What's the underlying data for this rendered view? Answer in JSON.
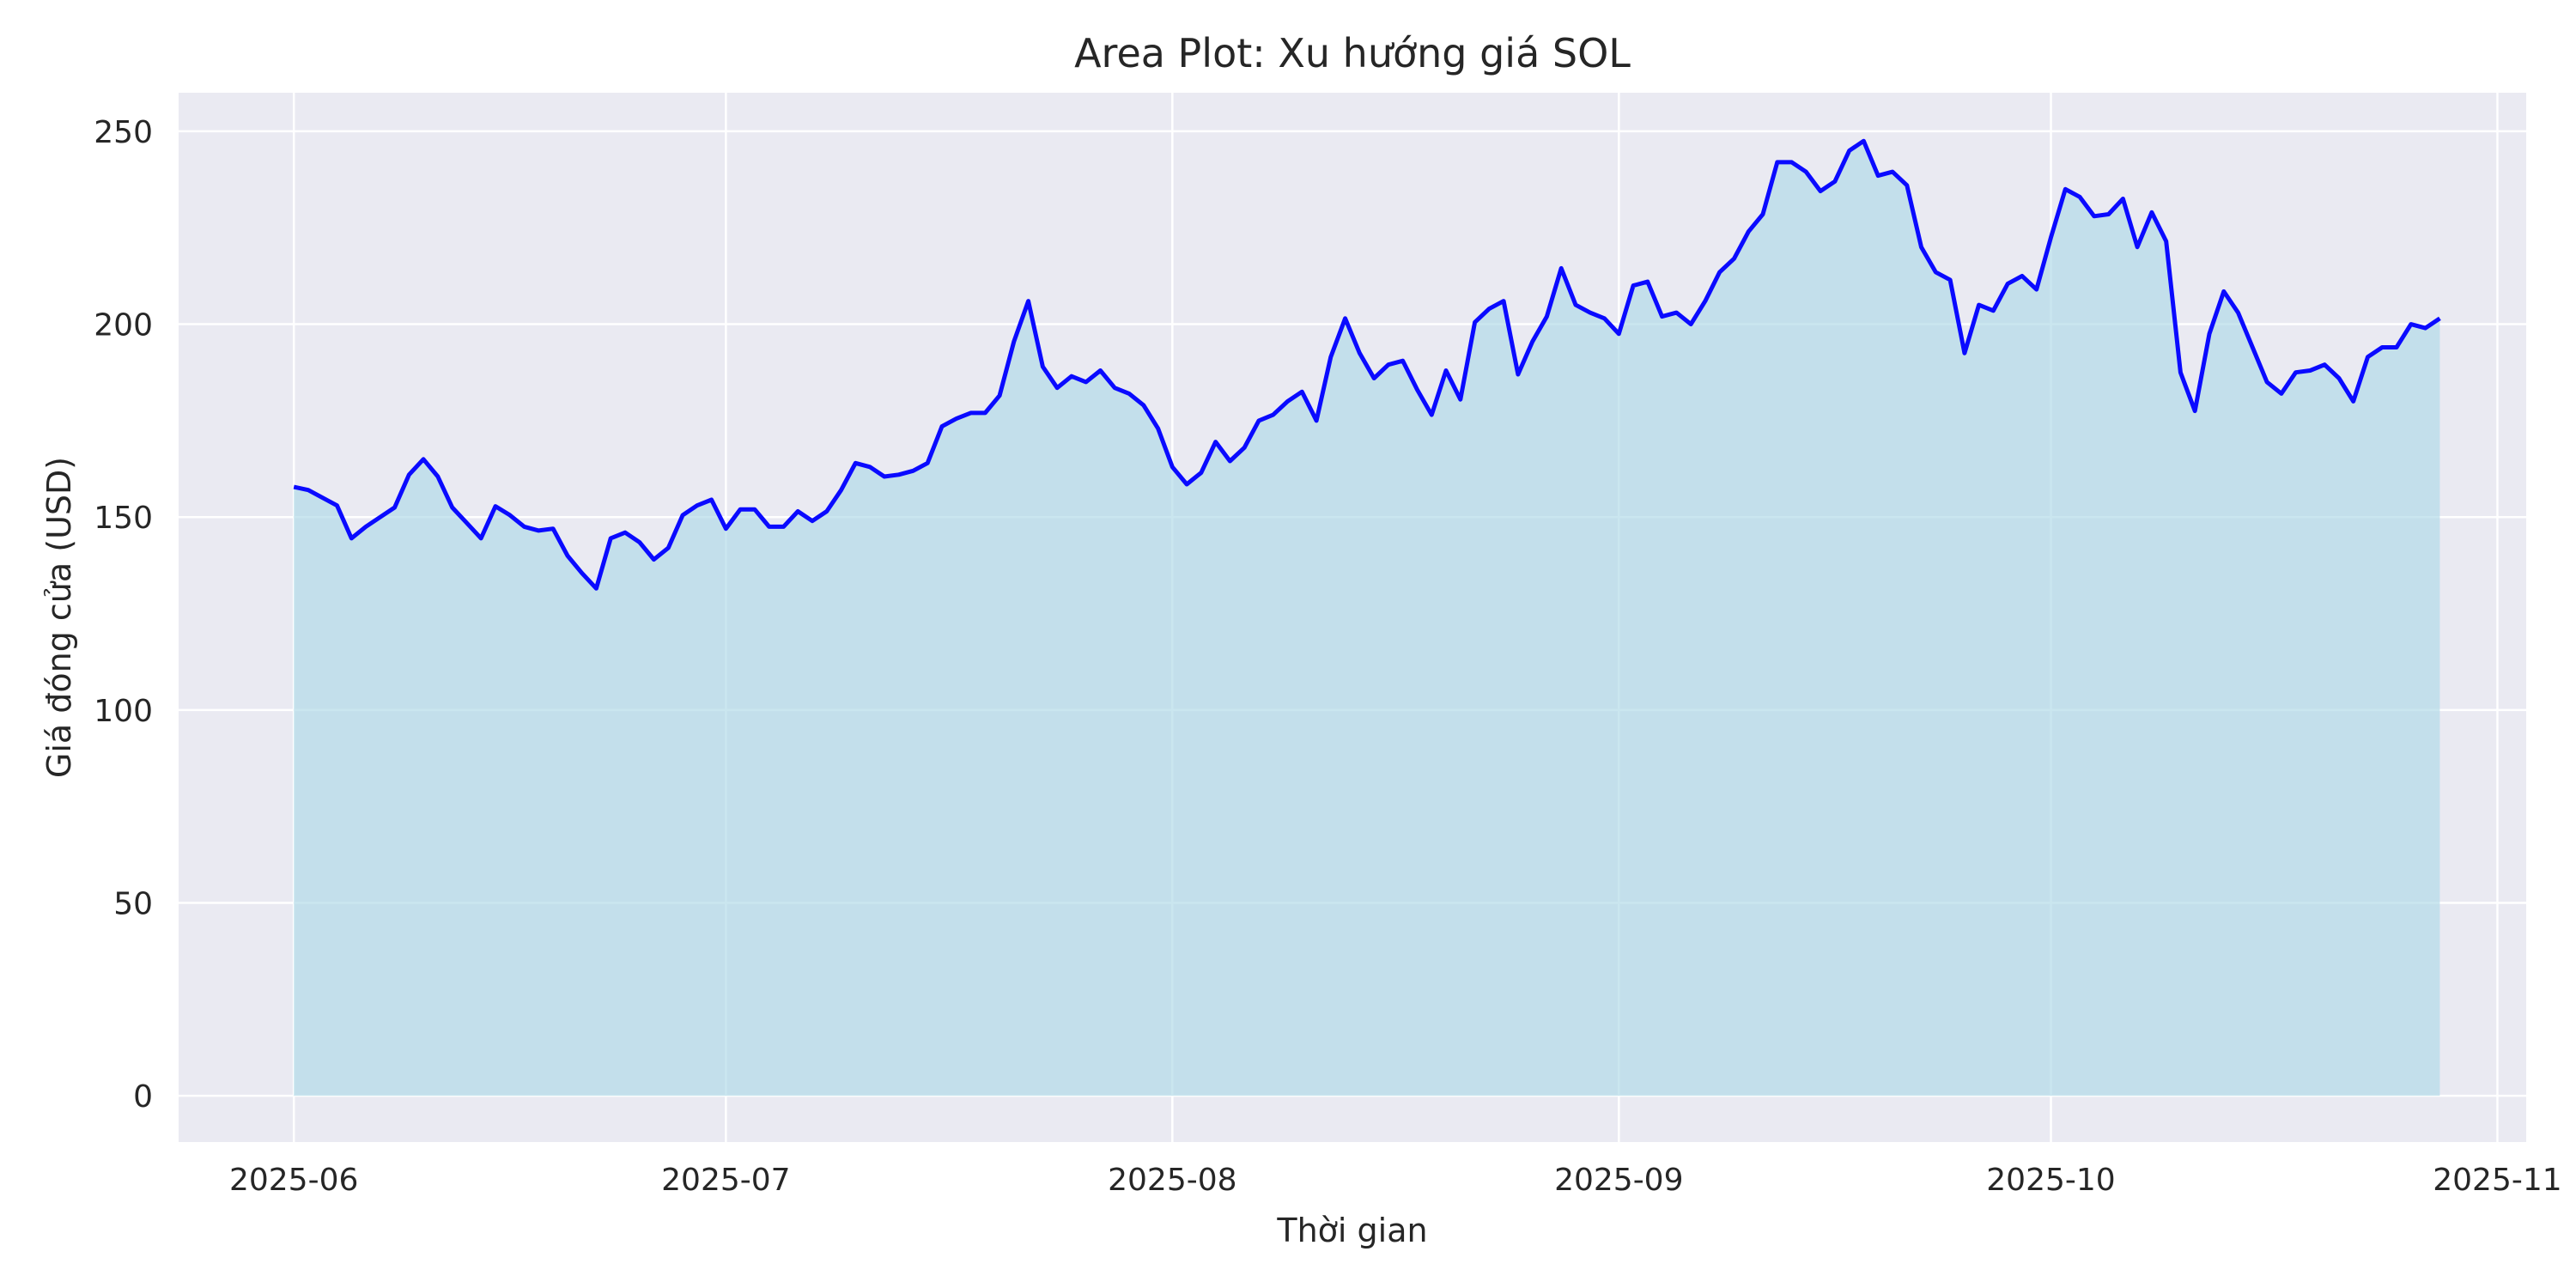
{
  "chart_data": {
    "type": "area",
    "title": "Area Plot: Xu hướng giá SOL",
    "xlabel": "Thời gian",
    "ylabel": "Giá đóng cửa (USD)",
    "x_start": "2025-06-01",
    "x_end": "2025-10-28",
    "xlim": [
      "2025-05-24",
      "2025-11-03"
    ],
    "ylim": [
      -12,
      260
    ],
    "x_ticks": [
      {
        "date": "2025-06-01",
        "label": "2025-06"
      },
      {
        "date": "2025-07-01",
        "label": "2025-07"
      },
      {
        "date": "2025-08-01",
        "label": "2025-08"
      },
      {
        "date": "2025-09-01",
        "label": "2025-09"
      },
      {
        "date": "2025-10-01",
        "label": "2025-10"
      },
      {
        "date": "2025-11-01",
        "label": "2025-11"
      }
    ],
    "y_ticks": [
      0,
      50,
      100,
      150,
      200,
      250
    ],
    "grid": true,
    "colors": {
      "line": "#0a0aff",
      "fill": "#add8e6",
      "background": "#eaeaf2",
      "grid": "#ffffff"
    },
    "series": [
      {
        "values": [
          157.8,
          157,
          155,
          153,
          144.5,
          147.5,
          150,
          152.5,
          161,
          165,
          160.5,
          152.5,
          148.5,
          144.5,
          152.8,
          150.5,
          147.5,
          146.5,
          147,
          140,
          135.5,
          131.5,
          144.5,
          146,
          143.5,
          139,
          142,
          150.5,
          153,
          154.5,
          147,
          152,
          152,
          147.5,
          147.5,
          151.5,
          149,
          151.5,
          157,
          164,
          163,
          160.5,
          161,
          162,
          164,
          173.5,
          175.5,
          177,
          177,
          181.5,
          195.5,
          206,
          189,
          183.5,
          186.5,
          185,
          188,
          183.5,
          182,
          179,
          173,
          163,
          158.5,
          161.5,
          169.5,
          164.5,
          168,
          175,
          176.5,
          180,
          182.5,
          175,
          191.5,
          201.5,
          192.5,
          186,
          189.5,
          190.5,
          183,
          176.5,
          188,
          180.5,
          200.5,
          204,
          206,
          187,
          195.5,
          202,
          214.5,
          205,
          203,
          201.5,
          197.5,
          210,
          211,
          202,
          203,
          200,
          206,
          213.5,
          217,
          224,
          228.5,
          242,
          242,
          239.5,
          234.5,
          237,
          245,
          247.5,
          238.5,
          239.5,
          236,
          220,
          213.5,
          211.5,
          192.5,
          205,
          203.5,
          210.5,
          212.5,
          209,
          222.5,
          235,
          233,
          228,
          228.5,
          232.5,
          220,
          229,
          221.5,
          187.5,
          177.5,
          197.5,
          208.5,
          203,
          194,
          185,
          182,
          187.5,
          188,
          189.5,
          186,
          180,
          191.5,
          194,
          194,
          200,
          199,
          201.5
        ]
      }
    ]
  }
}
